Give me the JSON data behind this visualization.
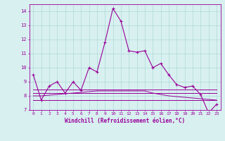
{
  "xlabel": "Windchill (Refroidissement éolien,°C)",
  "background_color": "#d8f0f0",
  "grid_color": "#b0d8d8",
  "line_color": "#990099",
  "x_values": [
    0,
    1,
    2,
    3,
    4,
    5,
    6,
    7,
    8,
    9,
    10,
    11,
    12,
    13,
    14,
    15,
    16,
    17,
    18,
    19,
    20,
    21,
    22,
    23
  ],
  "series_main": [
    9.5,
    7.7,
    8.7,
    9.0,
    8.2,
    9.0,
    8.4,
    10.0,
    9.7,
    11.8,
    14.2,
    13.3,
    11.2,
    11.1,
    11.2,
    10.0,
    10.3,
    9.5,
    8.8,
    8.6,
    8.7,
    8.1,
    6.8,
    7.4
  ],
  "series_flat1": [
    7.7,
    7.7,
    7.7,
    7.7,
    7.7,
    7.7,
    7.7,
    7.7,
    7.7,
    7.7,
    7.7,
    7.7,
    7.7,
    7.7,
    7.7,
    7.7,
    7.7,
    7.7,
    7.7,
    7.7,
    7.7,
    7.7,
    7.7,
    7.7
  ],
  "series_flat2": [
    8.2,
    8.2,
    8.2,
    8.2,
    8.2,
    8.2,
    8.2,
    8.2,
    8.2,
    8.2,
    8.2,
    8.2,
    8.2,
    8.2,
    8.2,
    8.2,
    8.2,
    8.2,
    8.2,
    8.2,
    8.2,
    8.2,
    8.2,
    8.2
  ],
  "series_flat3": [
    8.45,
    8.45,
    8.45,
    8.45,
    8.45,
    8.45,
    8.45,
    8.45,
    8.45,
    8.45,
    8.45,
    8.45,
    8.45,
    8.45,
    8.45,
    8.45,
    8.45,
    8.45,
    8.45,
    8.45,
    8.45,
    8.45,
    8.45,
    8.45
  ],
  "series_flat4": [
    8.0,
    8.0,
    8.05,
    8.1,
    8.15,
    8.2,
    8.25,
    8.3,
    8.35,
    8.35,
    8.35,
    8.35,
    8.35,
    8.35,
    8.35,
    8.2,
    8.1,
    8.0,
    7.95,
    7.9,
    7.85,
    7.8,
    7.75,
    7.7
  ],
  "ylim": [
    7,
    14.5
  ],
  "xlim": [
    -0.5,
    23.5
  ],
  "yticks": [
    7,
    8,
    9,
    10,
    11,
    12,
    13,
    14
  ],
  "xticks": [
    0,
    1,
    2,
    3,
    4,
    5,
    6,
    7,
    8,
    9,
    10,
    11,
    12,
    13,
    14,
    15,
    16,
    17,
    18,
    19,
    20,
    21,
    22,
    23
  ]
}
